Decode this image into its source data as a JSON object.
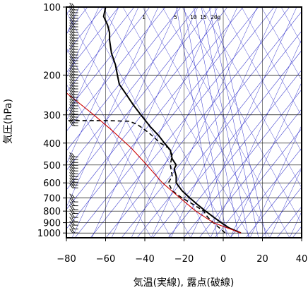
{
  "chart_data": {
    "type": "line",
    "title": "",
    "xlabel": "気温(実線), 露点(破線)",
    "ylabel": "気圧(hPa)",
    "xlim": [
      -80,
      40
    ],
    "ylim": [
      1050,
      100
    ],
    "y_scale": "log",
    "x_ticks": [
      "−80",
      "−60",
      "−40",
      "−20",
      "0",
      "20",
      "40"
    ],
    "x_tick_values": [
      -80,
      -60,
      -40,
      -20,
      0,
      20,
      40
    ],
    "y_ticks": [
      "100",
      "200",
      "300",
      "400",
      "500",
      "600",
      "700",
      "800",
      "900",
      "1000"
    ],
    "y_tick_values": [
      100,
      200,
      300,
      400,
      500,
      600,
      700,
      800,
      900,
      1000
    ],
    "mixing_ratio_labels": [
      "1",
      "5",
      "10",
      "15",
      "20g"
    ],
    "mixing_ratio_values": [
      1,
      5,
      10,
      15,
      20
    ],
    "grid": true,
    "colors": {
      "background_lines": "#3333cc",
      "temperature": "#000000",
      "dewpoint": "#000000",
      "parcel": "#cc0000",
      "barbs": "#000000"
    },
    "series": [
      {
        "style": "solid",
        "points": [
          [
            9,
            1000
          ],
          [
            3,
            950
          ],
          [
            -1,
            900
          ],
          [
            -5,
            850
          ],
          [
            -9,
            800
          ],
          [
            -13,
            750
          ],
          [
            -17,
            700
          ],
          [
            -21,
            650
          ],
          [
            -24,
            600
          ],
          [
            -24,
            560
          ],
          [
            -25,
            520
          ],
          [
            -24,
            500
          ],
          [
            -26,
            470
          ],
          [
            -27,
            430
          ],
          [
            -30,
            400
          ],
          [
            -33,
            370
          ],
          [
            -37,
            340
          ],
          [
            -42,
            300
          ],
          [
            -46,
            270
          ],
          [
            -50,
            240
          ],
          [
            -53,
            220
          ],
          [
            -54,
            200
          ],
          [
            -55,
            180
          ],
          [
            -57,
            160
          ],
          [
            -58,
            140
          ],
          [
            -58,
            130
          ],
          [
            -59,
            120
          ],
          [
            -61,
            110
          ],
          [
            -60,
            100
          ]
        ]
      },
      {
        "style": "dashed",
        "points": [
          [
            1,
            1000
          ],
          [
            -5,
            900
          ],
          [
            -8,
            850
          ],
          [
            -10,
            800
          ],
          [
            -15,
            750
          ],
          [
            -21,
            700
          ],
          [
            -26,
            650
          ],
          [
            -28,
            600
          ],
          [
            -26,
            560
          ],
          [
            -27,
            500
          ],
          [
            -26,
            450
          ],
          [
            -28,
            420
          ],
          [
            -32,
            400
          ],
          [
            -38,
            360
          ],
          [
            -44,
            330
          ],
          [
            -48,
            320
          ],
          [
            -60,
            318
          ],
          [
            -80,
            318
          ]
        ]
      },
      {
        "style": "solid-red",
        "points": [
          [
            9,
            1000
          ],
          [
            -5,
            900
          ],
          [
            -14,
            800
          ],
          [
            -22,
            700
          ],
          [
            -31,
            600
          ],
          [
            -39,
            500
          ],
          [
            -47,
            420
          ],
          [
            -57,
            350
          ],
          [
            -66,
            300
          ],
          [
            -80,
            240
          ]
        ]
      }
    ],
    "wind_barbs_pressure_ranges": [
      [
        100,
        340
      ],
      [
        460,
        640
      ],
      [
        700,
        1000
      ]
    ]
  }
}
